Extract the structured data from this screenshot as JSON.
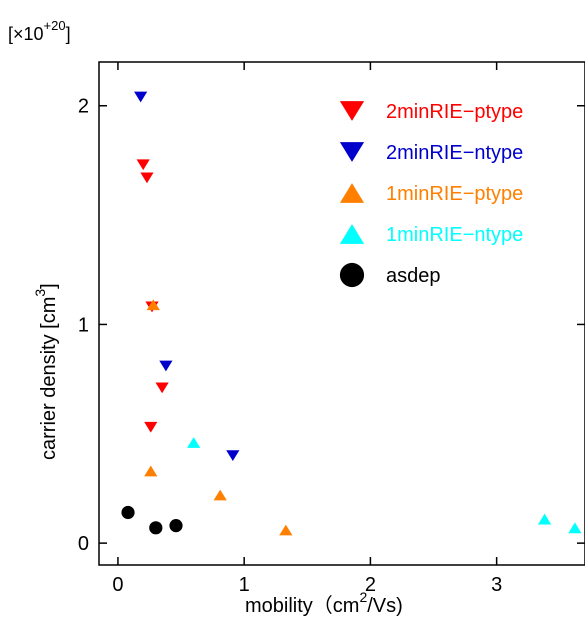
{
  "chart_data": {
    "type": "scatter",
    "title": "",
    "scale_factor": {
      "prefix": "[×10",
      "exponent": "+20",
      "suffix": "]"
    },
    "xlabel": {
      "text": "mobility（cm",
      "sup": "2",
      "after": "/Vs)"
    },
    "ylabel": {
      "text": "carrier density [cm",
      "sup": "3",
      "after": "]"
    },
    "xlim": [
      -0.15,
      3.7
    ],
    "ylim": [
      -0.1,
      2.2
    ],
    "xticks": [
      0,
      1,
      2,
      3
    ],
    "xtick_labels": [
      "0",
      "1",
      "2",
      "3"
    ],
    "yticks": [
      0,
      1,
      2
    ],
    "ytick_labels": [
      "0",
      "1",
      "2"
    ],
    "grid": false,
    "legend_position": "top-right",
    "series": [
      {
        "name": "2minRIE−ptype",
        "marker": "triangle-down",
        "color": "#ff0000",
        "points": [
          [
            0.2,
            1.73
          ],
          [
            0.23,
            1.67
          ],
          [
            0.27,
            1.08
          ],
          [
            0.35,
            0.71
          ],
          [
            0.26,
            0.53
          ]
        ]
      },
      {
        "name": "2minRIE−ntype",
        "marker": "triangle-down",
        "color": "#0000cc",
        "points": [
          [
            0.18,
            2.04
          ],
          [
            0.38,
            0.81
          ],
          [
            0.91,
            0.4
          ]
        ]
      },
      {
        "name": "1minRIE−ptype",
        "marker": "triangle-up",
        "color": "#ff8000",
        "points": [
          [
            0.28,
            1.09
          ],
          [
            0.26,
            0.33
          ],
          [
            0.81,
            0.22
          ],
          [
            1.33,
            0.06
          ]
        ]
      },
      {
        "name": "1minRIE−ntype",
        "marker": "triangle-up",
        "color": "#00ffff",
        "points": [
          [
            0.6,
            0.46
          ],
          [
            3.38,
            0.11
          ],
          [
            3.62,
            0.07
          ]
        ]
      },
      {
        "name": "asdep",
        "marker": "circle",
        "color": "#000000",
        "points": [
          [
            0.08,
            0.14
          ],
          [
            0.3,
            0.07
          ],
          [
            0.46,
            0.08
          ]
        ]
      }
    ]
  }
}
